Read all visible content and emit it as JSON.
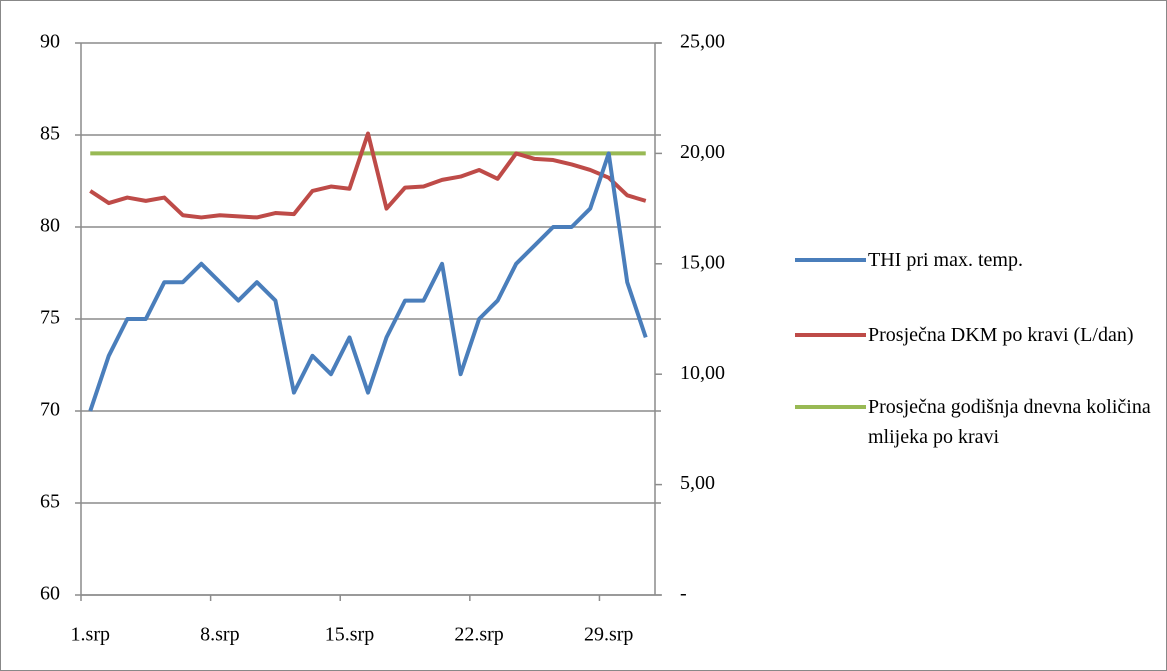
{
  "chart_data": {
    "type": "line",
    "categories": [
      "1.srp",
      null,
      null,
      null,
      null,
      null,
      null,
      "8.srp",
      null,
      null,
      null,
      null,
      null,
      null,
      "15.srp",
      null,
      null,
      null,
      null,
      null,
      null,
      "22.srp",
      null,
      null,
      null,
      null,
      null,
      null,
      "29.srp",
      null,
      null
    ],
    "series": [
      {
        "name": "THI pri max. temp.",
        "color": "#4a7ebb",
        "values": [
          70,
          73,
          75,
          75,
          77,
          77,
          78,
          77,
          76,
          77,
          76,
          71,
          73,
          72,
          74,
          71,
          74,
          76,
          76,
          78,
          72,
          75,
          76,
          78,
          79,
          80,
          80,
          81,
          84,
          77,
          74
        ]
      },
      {
        "name": "Prosječna DKM po kravi (L/dan)",
        "color": "#be4b48",
        "axis": "y2",
        "values": [
          18.3,
          17.75,
          18.0,
          17.85,
          18.0,
          17.2,
          17.1,
          17.2,
          17.15,
          17.1,
          17.3,
          17.25,
          18.3,
          18.5,
          18.4,
          20.9,
          17.5,
          18.45,
          18.5,
          18.8,
          18.95,
          19.25,
          18.85,
          20.0,
          19.75,
          19.7,
          19.5,
          19.25,
          18.9,
          18.1,
          17.85
        ]
      },
      {
        "name": "Prosječna godišnja dnevna količina mlijeka po kravi",
        "color": "#98b954",
        "axis": "y2",
        "values": [
          20,
          20,
          20,
          20,
          20,
          20,
          20,
          20,
          20,
          20,
          20,
          20,
          20,
          20,
          20,
          20,
          20,
          20,
          20,
          20,
          20,
          20,
          20,
          20,
          20,
          20,
          20,
          20,
          20,
          20,
          20
        ]
      }
    ],
    "ylim": [
      60,
      90
    ],
    "yticks": [
      60,
      65,
      70,
      75,
      80,
      85,
      90
    ],
    "y2lim": [
      0,
      25
    ],
    "y2ticks": [
      {
        "value": 0,
        "label": "-"
      },
      {
        "value": 5,
        "label": "5,00"
      },
      {
        "value": 10,
        "label": "10,00"
      },
      {
        "value": 15,
        "label": "15,00"
      },
      {
        "value": 20,
        "label": "20,00"
      },
      {
        "value": 25,
        "label": "25,00"
      }
    ],
    "grid": true,
    "legend": "right"
  }
}
